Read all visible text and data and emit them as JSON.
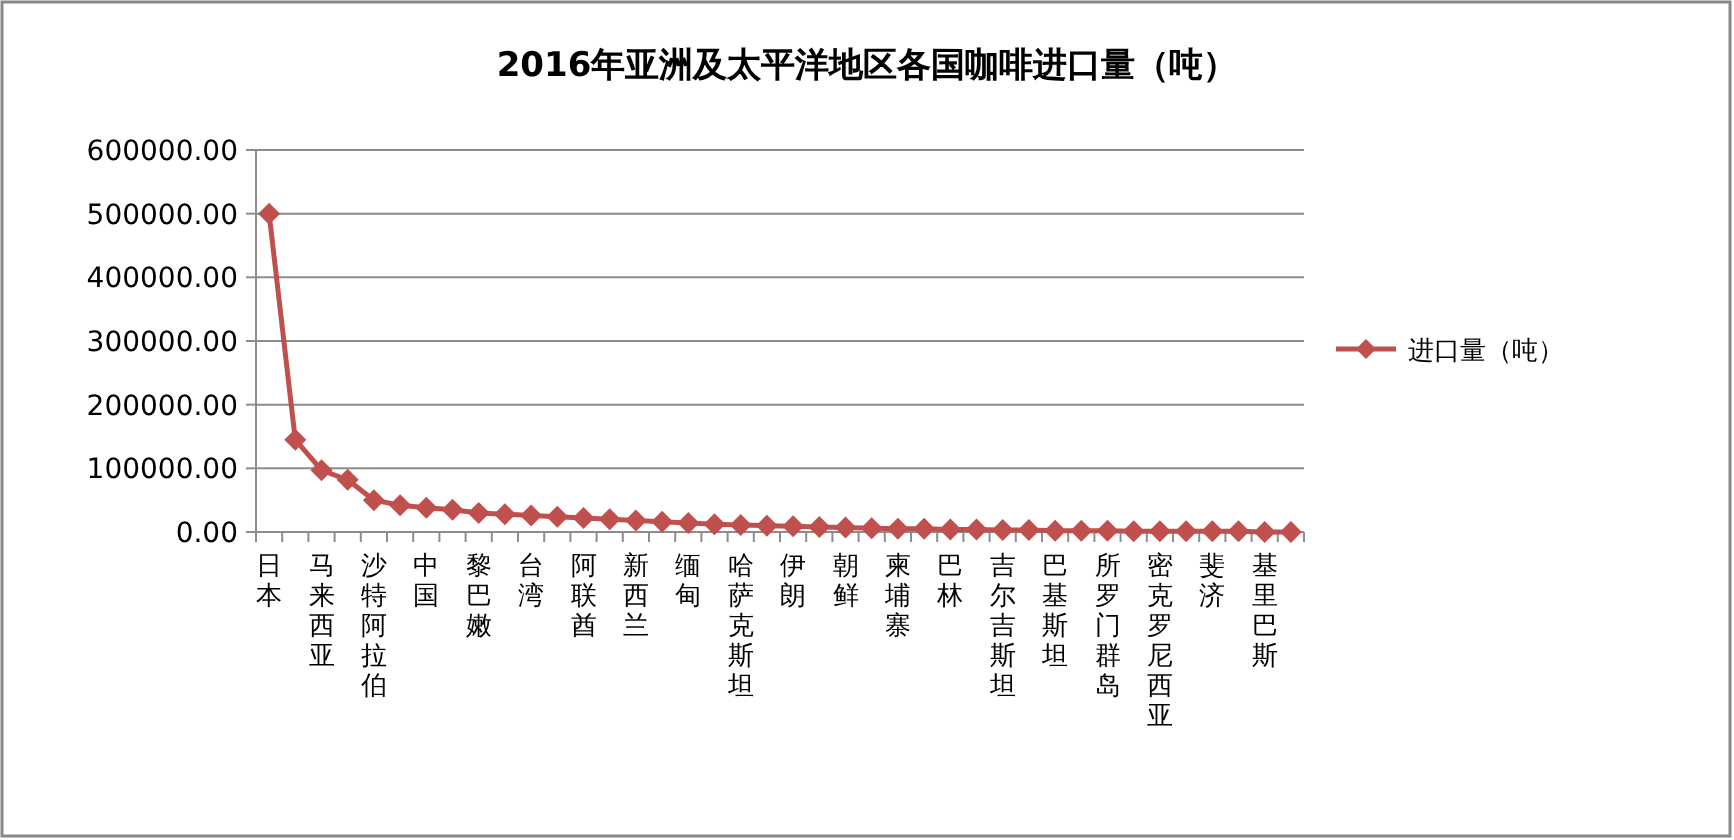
{
  "chart_data": {
    "type": "line",
    "title": "2016年亚洲及太平洋地区各国咖啡进口量（吨）",
    "categories": [
      "日本",
      null,
      "马来西亚",
      null,
      "沙特阿拉伯",
      null,
      "中国",
      null,
      "黎巴嫩",
      null,
      "台湾",
      null,
      "阿联酋",
      null,
      "新西兰",
      null,
      "缅甸",
      null,
      "哈萨克斯坦",
      null,
      "伊朗",
      null,
      "朝鲜",
      null,
      "柬埔寨",
      null,
      "巴林",
      null,
      "吉尔吉斯坦",
      null,
      "巴基斯坦",
      null,
      "所罗门群岛",
      null,
      "密克罗尼西亚",
      null,
      "斐济",
      null,
      "基里巴斯",
      null
    ],
    "series": [
      {
        "name": "进口量（吨）",
        "color": "#c0504d",
        "values": [
          500000,
          145000,
          97000,
          82000,
          50000,
          42000,
          38000,
          35000,
          30000,
          28000,
          26000,
          24000,
          22000,
          20000,
          18000,
          16000,
          14000,
          12000,
          11000,
          10000,
          9000,
          8000,
          7000,
          6000,
          5000,
          5000,
          4000,
          4000,
          3000,
          3000,
          2000,
          2000,
          2000,
          1000,
          1000,
          1000,
          1000,
          1000,
          0,
          0
        ]
      }
    ],
    "ylim": [
      0,
      600000
    ],
    "yticks": [
      {
        "value": 0,
        "label": "0.00"
      },
      {
        "value": 100000,
        "label": "100000.00"
      },
      {
        "value": 200000,
        "label": "200000.00"
      },
      {
        "value": 300000,
        "label": "300000.00"
      },
      {
        "value": 400000,
        "label": "400000.00"
      },
      {
        "value": 500000,
        "label": "500000.00"
      },
      {
        "value": 600000,
        "label": "600000.00"
      }
    ],
    "grid": "y",
    "legend": "right",
    "marker": "diamond",
    "line_style": "solid"
  }
}
